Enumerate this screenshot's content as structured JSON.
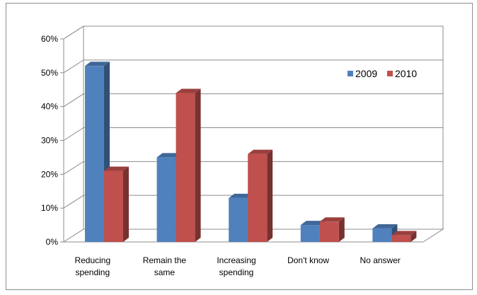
{
  "chart_data": {
    "type": "bar",
    "categories": [
      [
        "Reducing",
        "spending"
      ],
      [
        "Remain the",
        "same"
      ],
      [
        "Increasing",
        "spending"
      ],
      [
        "Don't know"
      ],
      [
        "No answer"
      ]
    ],
    "series": [
      {
        "name": "2009",
        "color": "#4f81bd",
        "values": [
          52,
          25,
          13,
          5,
          4
        ]
      },
      {
        "name": "2010",
        "color": "#c0504d",
        "values": [
          21,
          44,
          26,
          6,
          2
        ]
      }
    ],
    "y_ticks": [
      "0%",
      "10%",
      "20%",
      "30%",
      "40%",
      "50%",
      "60%"
    ],
    "ylim": [
      0,
      60
    ],
    "grid": true,
    "legend_position": "top-right",
    "style": "3d-clustered-column"
  }
}
